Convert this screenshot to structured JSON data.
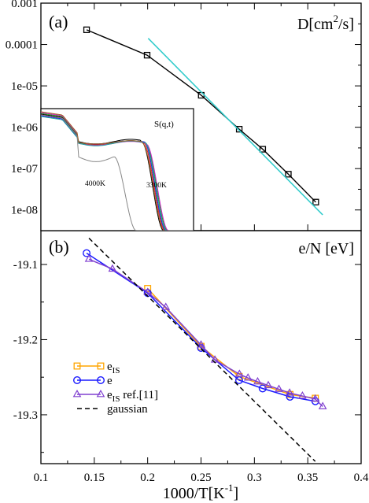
{
  "chart_data": [
    {
      "type": "line",
      "panel_label": "(a)",
      "ylabel": "D[cm²/s]",
      "ylabel_parts": {
        "base": "D[cm",
        "sup": "2",
        "end": "/s]"
      },
      "yscale": "log",
      "xlim": [
        0.1,
        0.4
      ],
      "ylim_log10": [
        -8.5,
        -3
      ],
      "ytick_values_log10": [
        -8,
        -7,
        -6,
        -5,
        -4,
        -3
      ],
      "ytick_labels": [
        "1e-08",
        "1e-07",
        "1e-06",
        "1e-05",
        "0.0001",
        "0.001"
      ],
      "series": [
        {
          "color": "#000000",
          "marker": "square",
          "x": [
            0.1428,
            0.1995,
            0.2502,
            0.2858,
            0.3078,
            0.3318,
            0.3575
          ],
          "y": [
            0.000227,
            5.52e-05,
            5.93e-06,
            8.96e-07,
            2.94e-07,
            7.32e-08,
            1.55e-08
          ]
        },
        {
          "color": "#33cccc",
          "marker": "none",
          "x": [
            0.2005,
            0.364
          ],
          "y": [
            0.000141,
            7.6e-09
          ]
        }
      ],
      "inset": {
        "title": "S(q,t)",
        "annotations": [
          "4000K",
          "3300K"
        ],
        "colors": [
          "#000000",
          "#e02020",
          "#20a020",
          "#2020e0",
          "#cc20cc",
          "#20a0a0",
          "#a06020",
          "#888888"
        ]
      }
    },
    {
      "type": "line",
      "panel_label": "(b)",
      "ylabel": "e/N [eV]",
      "xlabel": "1000/T[K⁻¹]",
      "xlabel_parts": {
        "base": "1000/T[K",
        "sup": "-1",
        "end": "]"
      },
      "xlim": [
        0.1,
        0.4
      ],
      "ylim": [
        -19.365,
        -19.055
      ],
      "xtick_values": [
        0.1,
        0.15,
        0.2,
        0.25,
        0.3,
        0.35,
        0.4
      ],
      "xtick_labels": [
        "0.1",
        "0.15",
        "0.2",
        "0.25",
        "0.3",
        "0.35",
        "0.4"
      ],
      "ytick_values": [
        -19.1,
        -19.2,
        -19.3
      ],
      "ytick_labels": [
        "-19.1",
        "-19.2",
        "-19.3"
      ],
      "series": [
        {
          "name": "e_IS",
          "legend_base": "e",
          "legend_sub": "IS",
          "legend_tail": "",
          "color": "#ffa500",
          "marker": "square",
          "x": [
            0.2,
            0.25,
            0.2857,
            0.3333,
            0.3571
          ],
          "y": [
            -19.132,
            -19.209,
            -19.249,
            -19.273,
            -19.278
          ]
        },
        {
          "name": "e",
          "legend_base": "e",
          "legend_sub": "",
          "legend_tail": "",
          "color": "#1a1aff",
          "marker": "circle",
          "x": [
            0.1428,
            0.2,
            0.25,
            0.2857,
            0.3077,
            0.3333,
            0.3571
          ],
          "y": [
            -19.085,
            -19.138,
            -19.211,
            -19.254,
            -19.265,
            -19.276,
            -19.282
          ]
        },
        {
          "name": "e_IS ref.[11]",
          "legend_base": "e",
          "legend_sub": "IS",
          "legend_tail": " ref.[11]",
          "color": "#8040d0",
          "marker": "triangle",
          "x": [
            0.145,
            0.167,
            0.2,
            0.217,
            0.25,
            0.263,
            0.286,
            0.294,
            0.303,
            0.313,
            0.323,
            0.333,
            0.345,
            0.357,
            0.364
          ],
          "y": [
            -19.093,
            -19.106,
            -19.137,
            -19.157,
            -19.207,
            -19.227,
            -19.246,
            -19.251,
            -19.256,
            -19.261,
            -19.266,
            -19.271,
            -19.275,
            -19.279,
            -19.289
          ]
        },
        {
          "name": "gaussian",
          "legend_base": "gaussian",
          "legend_sub": "",
          "legend_tail": "",
          "color": "#000000",
          "dashed": true,
          "marker": "none",
          "x": [
            0.145,
            0.357
          ],
          "y": [
            -19.065,
            -19.362
          ]
        }
      ]
    }
  ]
}
